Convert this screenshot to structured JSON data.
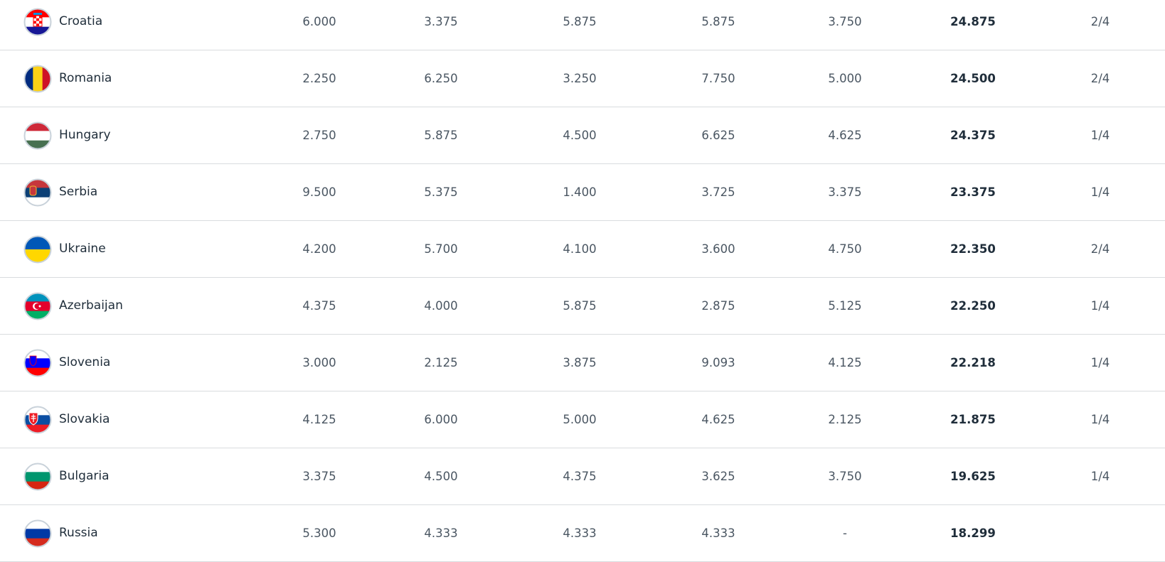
{
  "rows": [
    {
      "country": "Croatia",
      "flag": "croatia-flag-icon",
      "seasons": [
        "6.000",
        "3.375",
        "5.875",
        "5.875",
        "3.750"
      ],
      "total": "24.875",
      "teams": "2/4"
    },
    {
      "country": "Romania",
      "flag": "romania-flag-icon",
      "seasons": [
        "2.250",
        "6.250",
        "3.250",
        "7.750",
        "5.000"
      ],
      "total": "24.500",
      "teams": "2/4"
    },
    {
      "country": "Hungary",
      "flag": "hungary-flag-icon",
      "seasons": [
        "2.750",
        "5.875",
        "4.500",
        "6.625",
        "4.625"
      ],
      "total": "24.375",
      "teams": "1/4"
    },
    {
      "country": "Serbia",
      "flag": "serbia-flag-icon",
      "seasons": [
        "9.500",
        "5.375",
        "1.400",
        "3.725",
        "3.375"
      ],
      "total": "23.375",
      "teams": "1/4"
    },
    {
      "country": "Ukraine",
      "flag": "ukraine-flag-icon",
      "seasons": [
        "4.200",
        "5.700",
        "4.100",
        "3.600",
        "4.750"
      ],
      "total": "22.350",
      "teams": "2/4"
    },
    {
      "country": "Azerbaijan",
      "flag": "azerbaijan-flag-icon",
      "seasons": [
        "4.375",
        "4.000",
        "5.875",
        "2.875",
        "5.125"
      ],
      "total": "22.250",
      "teams": "1/4"
    },
    {
      "country": "Slovenia",
      "flag": "slovenia-flag-icon",
      "seasons": [
        "3.000",
        "2.125",
        "3.875",
        "9.093",
        "4.125"
      ],
      "total": "22.218",
      "teams": "1/4"
    },
    {
      "country": "Slovakia",
      "flag": "slovakia-flag-icon",
      "seasons": [
        "4.125",
        "6.000",
        "5.000",
        "4.625",
        "2.125"
      ],
      "total": "21.875",
      "teams": "1/4"
    },
    {
      "country": "Bulgaria",
      "flag": "bulgaria-flag-icon",
      "seasons": [
        "3.375",
        "4.500",
        "4.375",
        "3.625",
        "3.750"
      ],
      "total": "19.625",
      "teams": "1/4"
    },
    {
      "country": "Russia",
      "flag": "russia-flag-icon",
      "seasons": [
        "5.300",
        "4.333",
        "4.333",
        "4.333",
        "-"
      ],
      "total": "18.299",
      "teams": ""
    }
  ],
  "flag_colors": {
    "croatia": [
      "#ff0000",
      "#ffffff",
      "#171796"
    ],
    "romania": [
      "#002b7f",
      "#fcd116",
      "#ce1126"
    ],
    "hungary": [
      "#ce2939",
      "#ffffff",
      "#477050"
    ],
    "serbia": [
      "#c6363c",
      "#0c4076",
      "#ffffff"
    ],
    "ukraine": [
      "#0057b7",
      "#ffd700"
    ],
    "azerbaijan": [
      "#0092bc",
      "#e4002b",
      "#00af66"
    ],
    "slovenia": [
      "#ffffff",
      "#0000ff",
      "#ff0000"
    ],
    "slovakia": [
      "#ffffff",
      "#0b4ea2",
      "#ee1c25"
    ],
    "bulgaria": [
      "#ffffff",
      "#00966e",
      "#d62612"
    ],
    "russia": [
      "#ffffff",
      "#0039a6",
      "#d52b1e"
    ]
  }
}
